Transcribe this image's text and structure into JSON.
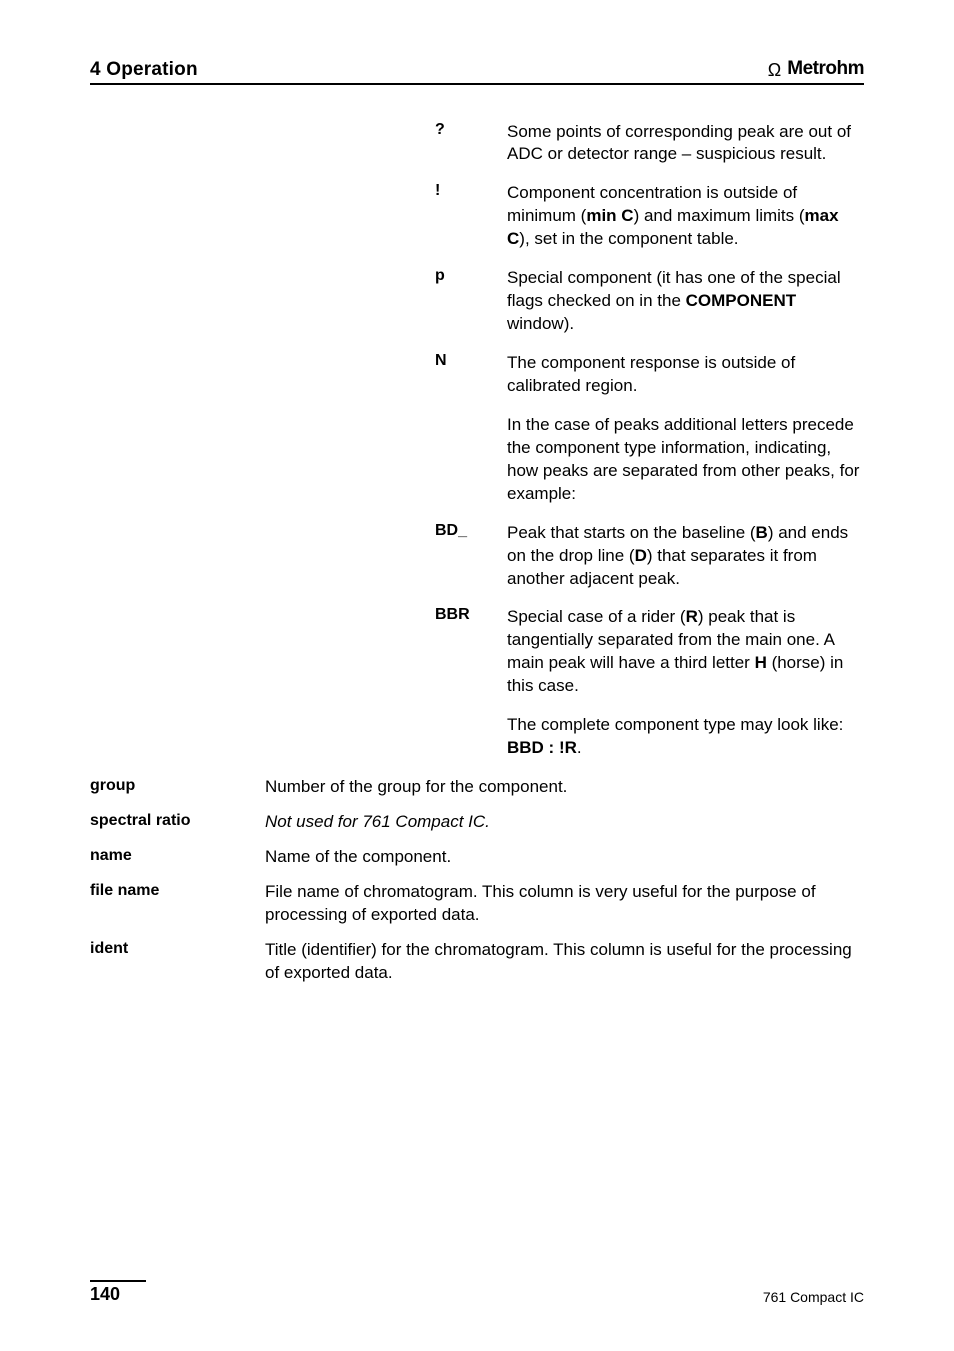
{
  "header": {
    "section": "4 Operation",
    "brand": "Metrohm"
  },
  "definitions": {
    "symbols": [
      {
        "sym": "?",
        "desc": [
          {
            "t": "text",
            "v": "Some points of corresponding peak are out of ADC or detector range – suspicious result."
          }
        ]
      },
      {
        "sym": "!",
        "desc": [
          {
            "t": "text",
            "v": "Component concentration is outside of minimum ("
          },
          {
            "t": "b",
            "v": "min C"
          },
          {
            "t": "text",
            "v": ") and maximum limits ("
          },
          {
            "t": "b",
            "v": "max C"
          },
          {
            "t": "text",
            "v": "), set in the component table."
          }
        ]
      },
      {
        "sym": "p",
        "desc": [
          {
            "t": "text",
            "v": "Special component (it has one of the special flags checked on in the "
          },
          {
            "t": "b",
            "v": "COMPONENT"
          },
          {
            "t": "text",
            "v": " window)."
          }
        ]
      },
      {
        "sym": "N",
        "desc": [
          {
            "t": "text",
            "v": "The component response is outside of calibrated region."
          }
        ]
      }
    ],
    "peaks_intro": "In the case of peaks additional letters precede the component type information, indicating, how peaks are separated from other peaks, for example:",
    "peak_codes": [
      {
        "sym": "BD_",
        "desc": [
          {
            "t": "text",
            "v": "Peak that starts on the baseline ("
          },
          {
            "t": "b",
            "v": "B"
          },
          {
            "t": "text",
            "v": ") and ends on the drop line ("
          },
          {
            "t": "b",
            "v": "D"
          },
          {
            "t": "text",
            "v": ") that separates it from another adjacent peak."
          }
        ]
      },
      {
        "sym": "BBR",
        "desc": [
          {
            "t": "text",
            "v": "Special case of a rider ("
          },
          {
            "t": "b",
            "v": "R"
          },
          {
            "t": "text",
            "v": ") peak that is tangentially separated from the main one. A main peak will have a third letter "
          },
          {
            "t": "b",
            "v": "H"
          },
          {
            "t": "text",
            "v": " (horse) in this case."
          }
        ]
      }
    ],
    "complete_example_pre": "The complete component type may look like: ",
    "complete_example_code": "BBD : !R",
    "complete_example_post": "."
  },
  "terms": [
    {
      "term": "group",
      "desc": [
        {
          "t": "text",
          "v": "Number of the group for the component."
        }
      ]
    },
    {
      "term": "spectral ratio",
      "desc": [
        {
          "t": "i",
          "v": "Not used for 761 Compact IC."
        }
      ]
    },
    {
      "term": "name",
      "desc": [
        {
          "t": "text",
          "v": "Name of the component."
        }
      ]
    },
    {
      "term": "file name",
      "desc": [
        {
          "t": "text",
          "v": "File name of chromatogram. This column is very useful for the purpose of processing of exported data."
        }
      ]
    },
    {
      "term": "ident",
      "desc": [
        {
          "t": "text",
          "v": "Title (identifier) for the chromatogram. This column is useful for the processing of exported data."
        }
      ]
    }
  ],
  "footer": {
    "page": "140",
    "doc": "761 Compact IC"
  }
}
